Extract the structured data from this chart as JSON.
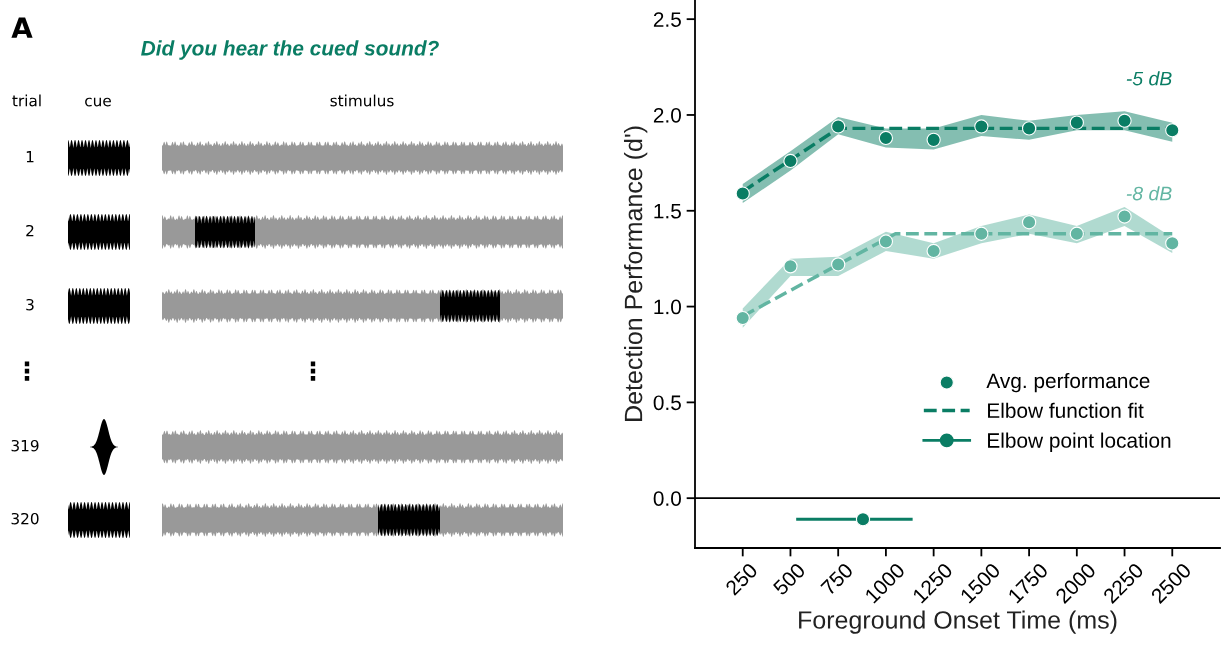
{
  "chart_data": [
    {
      "type": "other",
      "title": "Did you hear the cued sound?",
      "annotations": [
        "A",
        "trial",
        "cue",
        "stimulus",
        "1",
        "2",
        "3",
        "⋮",
        "⋮",
        "319",
        "320"
      ]
    },
    {
      "type": "scatter",
      "xlabel": "Foreground Onset Time (ms)",
      "ylabel": "Detection Performance (d')",
      "x": [
        250,
        500,
        750,
        1000,
        1250,
        1500,
        1750,
        2000,
        2250,
        2500
      ],
      "xlim": [
        0,
        2750
      ],
      "xticks": [
        250,
        500,
        750,
        1000,
        1250,
        1500,
        1750,
        2000,
        2250,
        2500
      ],
      "ylim": [
        -0.26,
        2.6
      ],
      "yticks": [
        {
          "value": 0,
          "label": "0.0"
        },
        0.5,
        {
          "value": 1,
          "label": "1.0"
        },
        1.5,
        {
          "value": 2,
          "label": "2.0"
        },
        2.5
      ],
      "legend": "bottom right",
      "grid": false,
      "ref_lines": [
        {
          "axis": "y",
          "value": 0,
          "color": "#000000",
          "line_style": "solid"
        }
      ],
      "annotations": [
        "-5 dB",
        "-8 dB"
      ],
      "series": [
        {
          "name": "Avg. performance",
          "type": "scatter",
          "marker": "circle",
          "color": "#0a7d64",
          "values": [
            1.59,
            1.76,
            1.94,
            1.88,
            1.87,
            1.94,
            1.93,
            1.96,
            1.97,
            1.92
          ],
          "lower": [
            1.54,
            1.71,
            1.9,
            1.83,
            1.82,
            1.89,
            1.87,
            1.92,
            1.92,
            1.86
          ],
          "upper": [
            1.64,
            1.81,
            1.99,
            1.93,
            1.93,
            2.0,
            1.97,
            2.0,
            2.02,
            1.96
          ]
        },
        {
          "type": "scatter",
          "marker": "circle",
          "color": "#62b5a2",
          "values": [
            0.94,
            1.21,
            1.22,
            1.34,
            1.29,
            1.38,
            1.44,
            1.38,
            1.47,
            1.33
          ],
          "lower": [
            0.89,
            1.16,
            1.16,
            1.29,
            1.25,
            1.33,
            1.38,
            1.33,
            1.42,
            1.28
          ],
          "upper": [
            0.99,
            1.25,
            1.26,
            1.39,
            1.33,
            1.42,
            1.48,
            1.42,
            1.52,
            1.36
          ]
        },
        {
          "name": "Elbow function fit",
          "type": "line",
          "line_style": "dashed",
          "marker": "none",
          "color": "#0a7d64",
          "x": [
            250,
            750,
            2500
          ],
          "values": [
            1.6,
            1.93,
            1.93
          ]
        },
        {
          "type": "line",
          "line_style": "dashed",
          "marker": "none",
          "color": "#62b5a2",
          "x": [
            250,
            1050,
            2500
          ],
          "values": [
            0.95,
            1.38,
            1.38
          ]
        },
        {
          "name": "Elbow point location",
          "type": "scatter",
          "marker": "circle",
          "color": "#0a7d64",
          "x": [
            880
          ],
          "values": [
            -0.11
          ],
          "xerrors": [
            [
              530,
              1140
            ]
          ]
        }
      ]
    }
  ]
}
